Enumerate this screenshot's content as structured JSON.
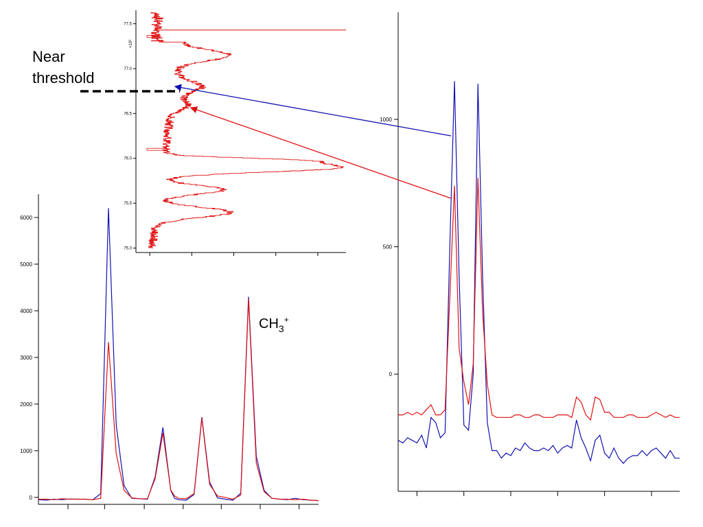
{
  "annotations": {
    "near_threshold_line1": "Near",
    "near_threshold_line2": "threshold",
    "ch3_base": "CH",
    "ch3_sub": "3",
    "ch3_sup": "+"
  },
  "colors": {
    "blue": "#1010b0",
    "red": "#e01010",
    "axis": "#000000"
  },
  "chart_data": [
    {
      "id": "left-spectrum",
      "type": "line",
      "ylim": [
        -150,
        6500
      ],
      "yticks": [
        0,
        1000,
        2000,
        3000,
        4000,
        5000,
        6000
      ],
      "ytick_labels": [
        "0",
        "1000",
        "2000",
        "3000",
        "4000",
        "5000",
        "6000"
      ],
      "xlim": [
        0,
        36
      ],
      "xticks": [
        3.8,
        8.5,
        13.6,
        18.6,
        23.5,
        28.5,
        33.5
      ],
      "x": [
        0,
        1,
        2,
        3,
        4,
        5,
        6,
        7,
        8,
        9,
        10,
        11,
        12,
        13,
        14,
        15,
        16,
        17,
        17.5,
        18,
        19,
        20,
        21,
        22,
        23,
        24,
        25,
        26,
        27,
        28,
        29,
        30,
        31,
        32,
        33,
        34,
        35,
        36
      ],
      "series": [
        {
          "color": "blue",
          "values": [
            -50,
            -60,
            -40,
            -50,
            -35,
            -40,
            -40,
            -50,
            80,
            6200,
            1550,
            250,
            -20,
            -30,
            -40,
            440,
            1500,
            150,
            -20,
            -50,
            -60,
            60,
            1720,
            330,
            -10,
            -40,
            -60,
            90,
            4300,
            880,
            150,
            -20,
            -40,
            -50,
            -20,
            -50,
            -60,
            -70
          ]
        },
        {
          "color": "red",
          "values": [
            -40,
            -40,
            -50,
            -30,
            -40,
            -40,
            -40,
            -50,
            -20,
            3330,
            930,
            150,
            -10,
            -30,
            -30,
            400,
            1380,
            160,
            30,
            -20,
            -30,
            80,
            1700,
            280,
            30,
            0,
            -40,
            50,
            4250,
            740,
            120,
            -20,
            -40,
            -40,
            -50,
            -40,
            -60,
            -70
          ]
        }
      ]
    },
    {
      "id": "right-spectrum",
      "type": "line",
      "ylim": [
        -460,
        1420
      ],
      "yticks": [
        0,
        500,
        1000
      ],
      "ytick_labels": [
        "0",
        "500",
        "1000"
      ],
      "xlim": [
        0,
        60
      ],
      "xticks": [
        4,
        14,
        24,
        34,
        44,
        54
      ],
      "x": [
        0,
        1,
        2,
        3,
        4,
        5,
        6,
        7,
        8,
        9,
        10,
        11,
        12,
        13,
        14,
        15,
        16,
        17,
        18,
        19,
        20,
        21,
        22,
        23,
        24,
        25,
        26,
        27,
        28,
        29,
        30,
        31,
        32,
        33,
        34,
        35,
        36,
        37,
        38,
        39,
        40,
        41,
        42,
        43,
        44,
        45,
        46,
        47,
        48,
        49,
        50,
        51,
        52,
        53,
        54,
        55,
        56,
        57,
        58,
        59,
        60
      ],
      "series": [
        {
          "color": "blue",
          "values": [
            -260,
            -270,
            -250,
            -260,
            -270,
            -240,
            -290,
            -170,
            -190,
            -250,
            -230,
            500,
            1150,
            380,
            -200,
            -220,
            0,
            1140,
            380,
            -190,
            -300,
            -300,
            -330,
            -310,
            -320,
            -290,
            -300,
            -270,
            -290,
            -300,
            -300,
            -290,
            -300,
            -280,
            -310,
            -290,
            -280,
            -290,
            -180,
            -250,
            -290,
            -340,
            -260,
            -240,
            -310,
            -330,
            -290,
            -330,
            -350,
            -330,
            -320,
            -320,
            -300,
            -320,
            -300,
            -290,
            -310,
            -330,
            -300,
            -330,
            -330
          ]
        },
        {
          "color": "red",
          "values": [
            -160,
            -160,
            -150,
            -160,
            -150,
            -160,
            -140,
            -120,
            -160,
            -160,
            -140,
            300,
            740,
            100,
            -30,
            -120,
            40,
            770,
            240,
            -40,
            -160,
            -170,
            -170,
            -170,
            -170,
            -160,
            -160,
            -170,
            -170,
            -160,
            -160,
            -170,
            -170,
            -170,
            -160,
            -160,
            -160,
            -170,
            -90,
            -110,
            -160,
            -180,
            -90,
            -100,
            -150,
            -150,
            -170,
            -170,
            -170,
            -160,
            -160,
            -170,
            -170,
            -170,
            -160,
            -150,
            -160,
            -170,
            -160,
            -170,
            -170
          ]
        }
      ]
    },
    {
      "id": "inset-yield-curve",
      "type": "line",
      "orientation": "vertical",
      "ylabel": "×10³",
      "ylim": [
        74.95,
        77.65
      ],
      "yticks": [
        75.0,
        75.5,
        76.0,
        76.5,
        77.0,
        77.5
      ],
      "ytick_labels": [
        "75.0",
        "75.5",
        "76.0",
        "76.5",
        "77.0",
        "77.5"
      ],
      "xlim": [
        0,
        100
      ],
      "xticks": [
        2,
        22,
        42,
        62,
        82,
        100
      ],
      "series": [
        {
          "color": "red",
          "values": []
        }
      ]
    }
  ]
}
